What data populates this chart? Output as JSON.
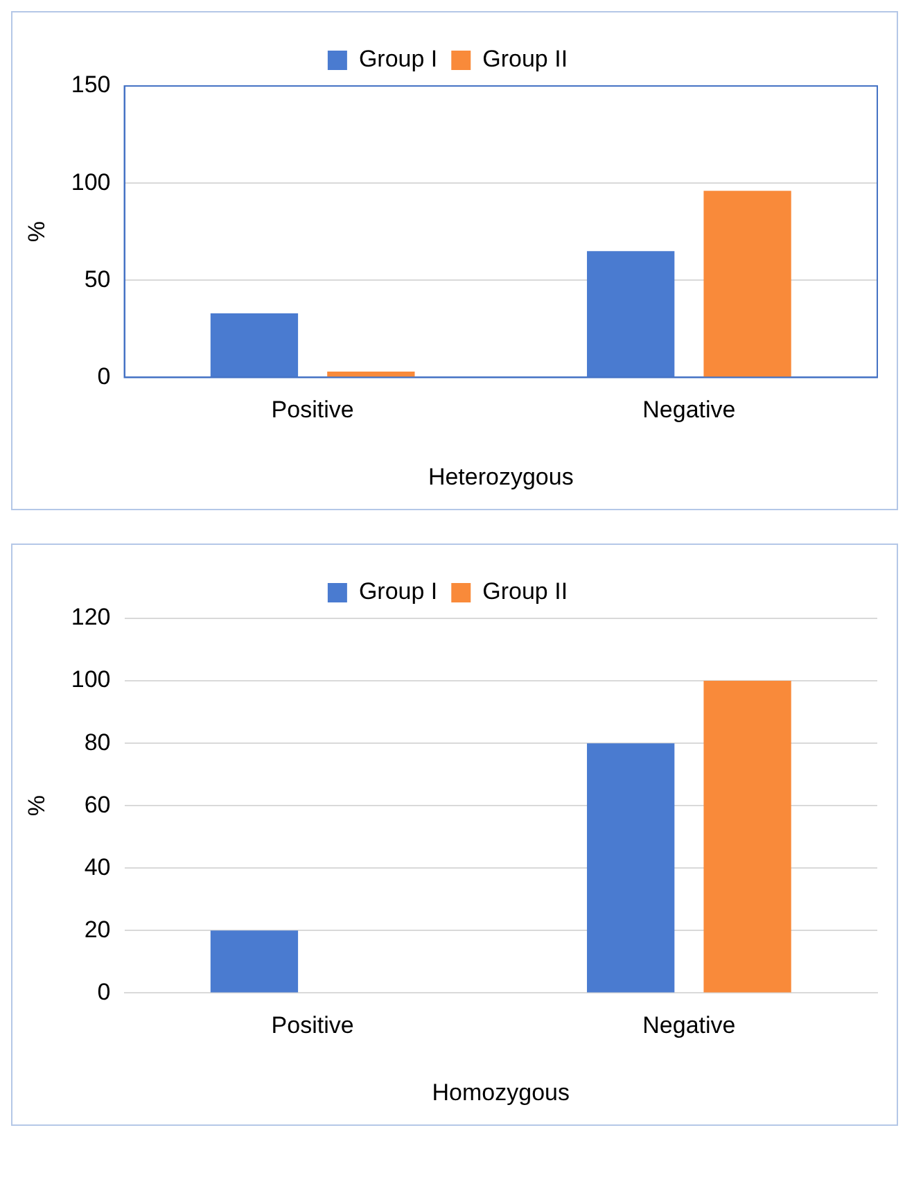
{
  "chart_data": [
    {
      "type": "bar",
      "categories": [
        "Positive",
        "Negative"
      ],
      "xlabel": "Heterozygous",
      "ylabel": "%",
      "ylim": [
        0,
        150
      ],
      "yticks": [
        0,
        50,
        100,
        150
      ],
      "grid": "y",
      "legend": "top",
      "series": [
        {
          "name": "Group I",
          "color": "#4a7bd0",
          "values": [
            33,
            65
          ]
        },
        {
          "name": "Group II",
          "color": "#f98a3a",
          "values": [
            3,
            96
          ]
        }
      ]
    },
    {
      "type": "bar",
      "categories": [
        "Positive",
        "Negative"
      ],
      "xlabel": "Homozygous",
      "ylabel": "%",
      "ylim": [
        0,
        120
      ],
      "yticks": [
        0,
        20,
        40,
        60,
        80,
        100,
        120
      ],
      "grid": "y",
      "legend": "top",
      "series": [
        {
          "name": "Group I",
          "color": "#4a7bd0",
          "values": [
            20,
            80
          ]
        },
        {
          "name": "Group II",
          "color": "#f98a3a",
          "values": [
            0,
            100
          ]
        }
      ]
    }
  ]
}
